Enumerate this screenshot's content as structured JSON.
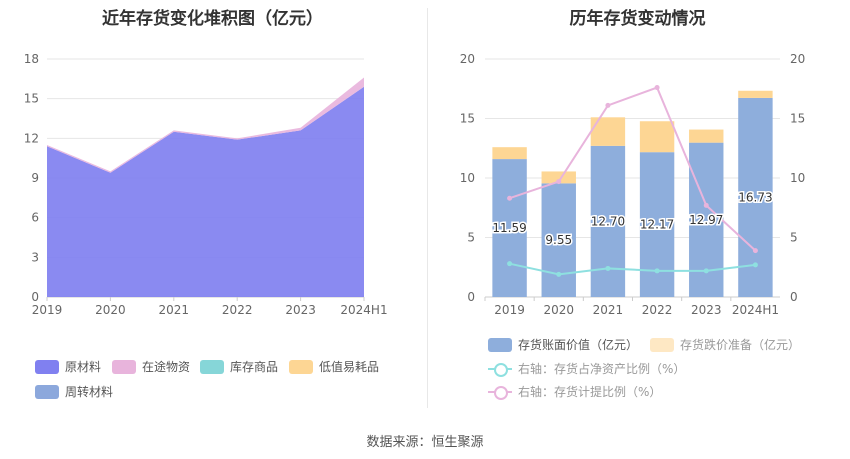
{
  "titles": {
    "left": "近年存货变化堆积图（亿元）",
    "right": "历年存货变动情况"
  },
  "source": "数据来源：恒生聚源",
  "chart_data": [
    {
      "type": "area",
      "stacked": true,
      "title": "近年存货变化堆积图（亿元）",
      "categories": [
        "2019",
        "2020",
        "2021",
        "2022",
        "2023",
        "2024H1"
      ],
      "ylim": [
        0,
        18
      ],
      "yticks": [
        0,
        3,
        6,
        9,
        12,
        15,
        18
      ],
      "grid": true,
      "legend_position": "bottom",
      "series": [
        {
          "name": "原材料",
          "color": "#8080f0",
          "values": [
            11.4,
            9.4,
            12.5,
            11.9,
            12.6,
            15.9
          ]
        },
        {
          "name": "在途物资",
          "color": "#e8b4dc",
          "values": [
            0.1,
            0.1,
            0.1,
            0.1,
            0.2,
            0.7
          ]
        },
        {
          "name": "库存商品",
          "color": "#86d6d8",
          "values": [
            0,
            0,
            0,
            0,
            0,
            0
          ]
        },
        {
          "name": "低值易耗品",
          "color": "#fdd694",
          "values": [
            0,
            0,
            0,
            0,
            0,
            0
          ]
        },
        {
          "name": "周转材料",
          "color": "#8ca8dc",
          "values": [
            0,
            0,
            0,
            0,
            0,
            0
          ]
        }
      ]
    },
    {
      "type": "bar",
      "stacked": true,
      "title": "历年存货变动情况",
      "categories": [
        "2019",
        "2020",
        "2021",
        "2022",
        "2023",
        "2024H1"
      ],
      "ylim": [
        0,
        20
      ],
      "yticks": [
        0,
        5,
        10,
        15,
        20
      ],
      "y2lim": [
        0,
        20
      ],
      "y2ticks": [
        0,
        5,
        10,
        15,
        20
      ],
      "grid": true,
      "legend_position": "bottom",
      "series": [
        {
          "name": "存货账面价值（亿元）",
          "kind": "bar",
          "color": "#8eaedc",
          "values": [
            11.59,
            9.55,
            12.7,
            12.17,
            12.97,
            16.73
          ],
          "labels": [
            "11.59",
            "9.55",
            "12.70",
            "12.17",
            "12.97",
            "16.73"
          ]
        },
        {
          "name": "存货跌价准备（亿元）",
          "kind": "bar",
          "color": "#fdd694",
          "values": [
            1.0,
            1.0,
            2.4,
            2.6,
            1.1,
            0.6
          ]
        },
        {
          "name": "右轴：存货占净资产比例（%）",
          "kind": "line",
          "axis": "right",
          "color": "#8ee0e0",
          "values": [
            2.8,
            1.9,
            2.4,
            2.2,
            2.2,
            2.7
          ]
        },
        {
          "name": "右轴：存货计提比例（%）",
          "kind": "line",
          "axis": "right",
          "color": "#e8b4dc",
          "values": [
            8.3,
            9.7,
            16.1,
            17.6,
            7.7,
            3.9
          ]
        }
      ]
    }
  ]
}
